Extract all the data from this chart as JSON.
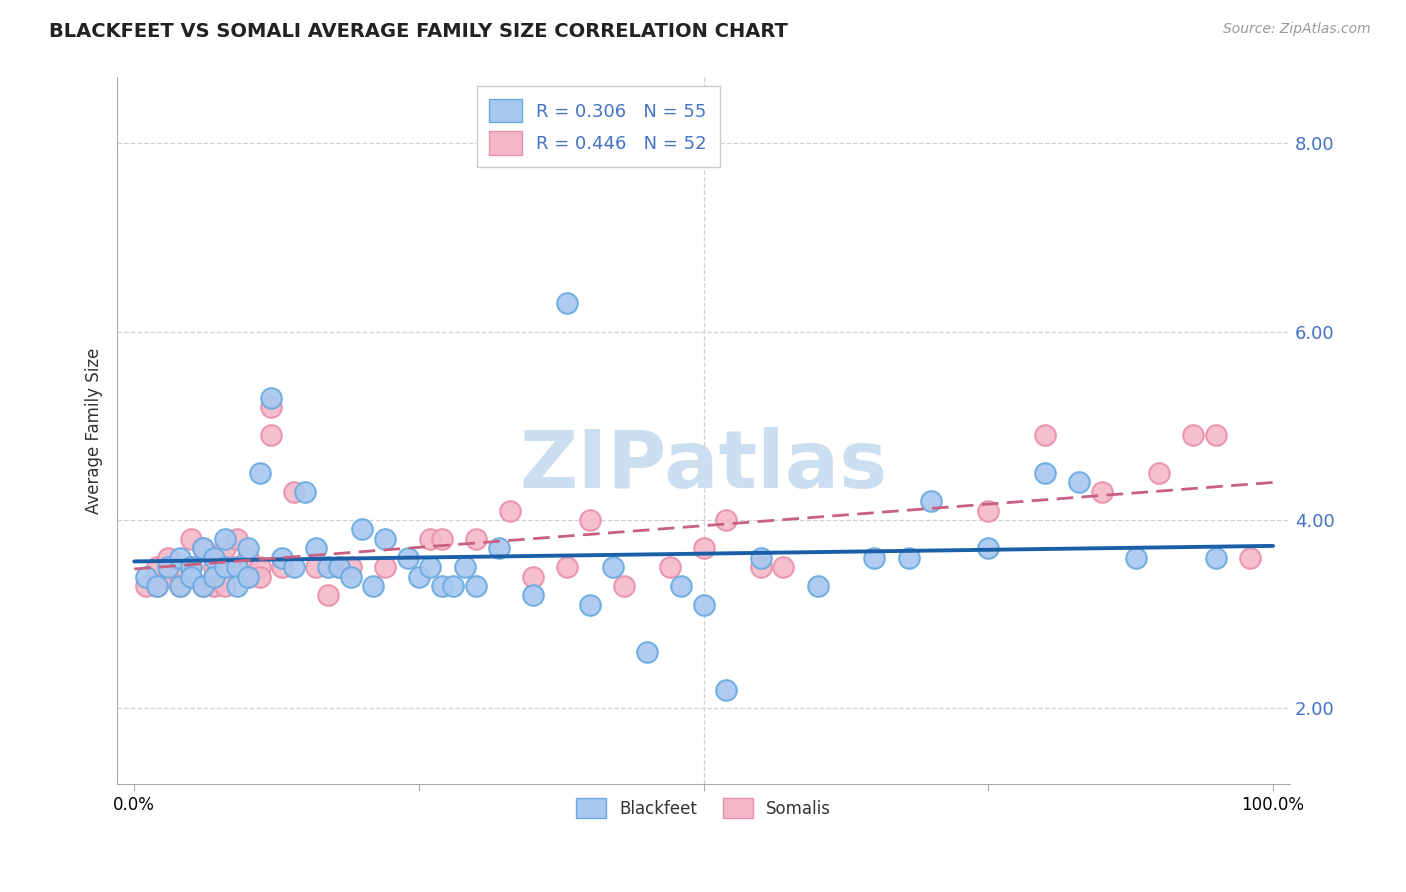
{
  "title": "BLACKFEET VS SOMALI AVERAGE FAMILY SIZE CORRELATION CHART",
  "source": "Source: ZipAtlas.com",
  "ylabel": "Average Family Size",
  "yticks": [
    2.0,
    4.0,
    6.0,
    8.0
  ],
  "xticks": [
    0,
    25,
    50,
    75,
    100
  ],
  "blackfeet_R": 0.306,
  "blackfeet_N": 55,
  "somali_R": 0.446,
  "somali_N": 52,
  "blackfeet_color": "#a8c8f0",
  "somali_color": "#f5b8c8",
  "blackfeet_edge": "#6aaae0",
  "somali_edge": "#e890aa",
  "trend_blue": "#1a5fa8",
  "trend_pink": "#c86080",
  "watermark": "ZIPatlas",
  "watermark_color": "#ccdff0",
  "legend_text_color": "#333333",
  "legend_value_color": "#4472c4",
  "blackfeet_x": [
    1,
    2,
    3,
    4,
    4,
    5,
    5,
    6,
    6,
    7,
    7,
    8,
    8,
    9,
    9,
    10,
    10,
    11,
    12,
    13,
    14,
    15,
    16,
    17,
    18,
    19,
    20,
    21,
    22,
    24,
    25,
    26,
    27,
    28,
    29,
    30,
    32,
    35,
    38,
    40,
    42,
    45,
    48,
    50,
    52,
    55,
    60,
    65,
    68,
    70,
    75,
    80,
    83,
    88,
    95
  ],
  "blackfeet_y": [
    3.4,
    3.3,
    3.5,
    3.6,
    3.3,
    3.5,
    3.4,
    3.7,
    3.3,
    3.6,
    3.4,
    3.8,
    3.5,
    3.5,
    3.3,
    3.7,
    3.4,
    4.5,
    5.3,
    3.6,
    3.5,
    4.3,
    3.7,
    3.5,
    3.5,
    3.4,
    3.9,
    3.3,
    3.8,
    3.6,
    3.4,
    3.5,
    3.3,
    3.3,
    3.5,
    3.3,
    3.7,
    3.2,
    6.3,
    3.1,
    3.5,
    2.6,
    3.3,
    3.1,
    2.2,
    3.6,
    3.3,
    3.6,
    3.6,
    4.2,
    3.7,
    4.5,
    4.4,
    3.6,
    3.6
  ],
  "somali_x": [
    1,
    2,
    2,
    3,
    3,
    4,
    4,
    5,
    5,
    6,
    6,
    7,
    7,
    7,
    8,
    8,
    8,
    9,
    9,
    10,
    10,
    11,
    11,
    12,
    12,
    13,
    14,
    16,
    17,
    18,
    19,
    22,
    26,
    27,
    30,
    33,
    35,
    38,
    40,
    43,
    47,
    50,
    52,
    55,
    57,
    75,
    80,
    85,
    90,
    93,
    95,
    98
  ],
  "somali_y": [
    3.3,
    3.5,
    3.3,
    3.6,
    3.4,
    3.4,
    3.3,
    3.8,
    3.5,
    3.7,
    3.3,
    3.5,
    3.4,
    3.3,
    3.5,
    3.7,
    3.3,
    3.8,
    3.5,
    3.6,
    3.4,
    3.5,
    3.4,
    5.2,
    4.9,
    3.5,
    4.3,
    3.5,
    3.2,
    3.5,
    3.5,
    3.5,
    3.8,
    3.8,
    3.8,
    4.1,
    3.4,
    3.5,
    4.0,
    3.3,
    3.5,
    3.7,
    4.0,
    3.5,
    3.5,
    4.1,
    4.9,
    4.3,
    4.5,
    4.9,
    4.9,
    3.6
  ],
  "ylim_min": 1.2,
  "ylim_max": 8.7,
  "xlim_min": -1.5,
  "xlim_max": 101.5
}
